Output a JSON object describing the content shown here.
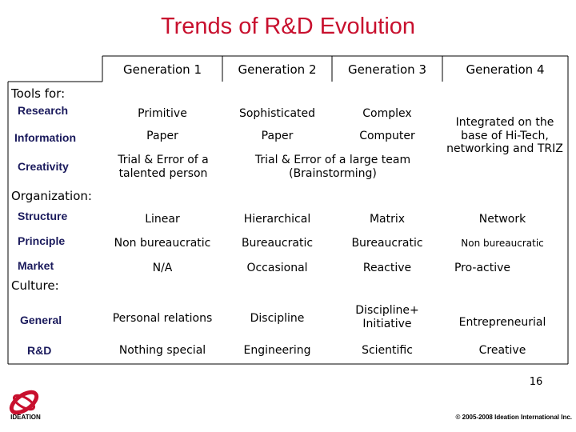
{
  "header": {
    "title": "Trends of R&D Evolution"
  },
  "table": {
    "columns": [
      "Generation 1",
      "Generation 2",
      "Generation 3",
      "Generation 4"
    ],
    "sections": [
      {
        "title": "Tools for:",
        "rows": [
          {
            "label": "Research",
            "cells": [
              "Primitive",
              "Sophisticated",
              "Complex",
              "Integrated on the base of Hi-Tech, networking and TRIZ"
            ]
          },
          {
            "label": "Information",
            "cells": [
              "Paper",
              "Paper",
              "Computer"
            ]
          },
          {
            "label": "Creativity",
            "cells": [
              "Trial & Error of a talented person",
              "Trial & Error of a large team (Brainstorming)"
            ]
          }
        ]
      },
      {
        "title": "Organization:",
        "rows": [
          {
            "label": "Structure",
            "cells": [
              "Linear",
              "Hierarchical",
              "Matrix",
              "Network"
            ]
          },
          {
            "label": "Principle",
            "cells": [
              "Non bureaucratic",
              "Bureaucratic",
              "Bureaucratic",
              "Non bureaucratic"
            ]
          },
          {
            "label": "Market",
            "cells": [
              "N/A",
              "Occasional",
              "Reactive",
              "Pro-active"
            ]
          }
        ]
      },
      {
        "title": "Culture:",
        "rows": [
          {
            "label": "General",
            "cells": [
              "Personal relations",
              "Discipline",
              "Discipline+ Initiative",
              "Entrepreneurial"
            ]
          },
          {
            "label": "R&D",
            "cells": [
              "Nothing special",
              "Engineering",
              "Scientific",
              "Creative"
            ]
          }
        ]
      }
    ]
  },
  "footer": {
    "page_number": "16",
    "copyright": "© 2005-2008 Ideation International Inc.",
    "logo_text": "IDEATION"
  }
}
